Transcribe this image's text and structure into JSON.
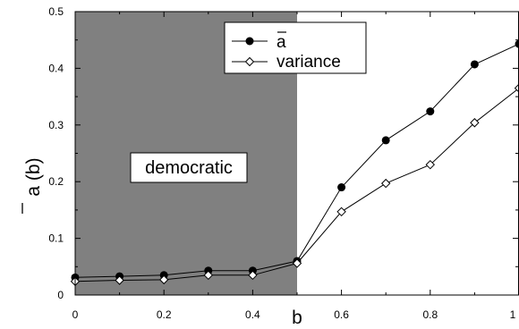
{
  "chart_data": {
    "type": "line",
    "xlabel": "b",
    "ylabel": "a (b)",
    "xlim": [
      0,
      1
    ],
    "ylim": [
      0,
      0.5
    ],
    "x_ticks": [
      0,
      0.2,
      0.4,
      0.6,
      0.8,
      1
    ],
    "x_tick_labels": [
      "0",
      "0.2",
      "0.4",
      "0.6",
      "0.8",
      "1"
    ],
    "y_ticks": [
      0,
      0.1,
      0.2,
      0.3,
      0.4,
      0.5
    ],
    "y_tick_labels": [
      "0",
      "0.1",
      "0.2",
      "0.3",
      "0.4",
      "0.5"
    ],
    "grid": false,
    "legend_position": "top-center",
    "shaded_region": {
      "x_from": 0,
      "x_to": 0.5,
      "label": "democratic",
      "color": "#808080"
    },
    "series": [
      {
        "name": "a",
        "marker": "filled-circle",
        "x": [
          0,
          0.1,
          0.2,
          0.3,
          0.4,
          0.5,
          0.6,
          0.7,
          0.8,
          0.9,
          1.0
        ],
        "values": [
          0.031,
          0.033,
          0.035,
          0.043,
          0.043,
          0.06,
          0.19,
          0.273,
          0.324,
          0.407,
          0.443
        ]
      },
      {
        "name": "variance",
        "marker": "open-diamond",
        "x": [
          0,
          0.1,
          0.2,
          0.3,
          0.4,
          0.5,
          0.6,
          0.7,
          0.8,
          0.9,
          1.0
        ],
        "values": [
          0.024,
          0.026,
          0.027,
          0.035,
          0.035,
          0.056,
          0.147,
          0.197,
          0.23,
          0.304,
          0.365
        ]
      }
    ]
  }
}
